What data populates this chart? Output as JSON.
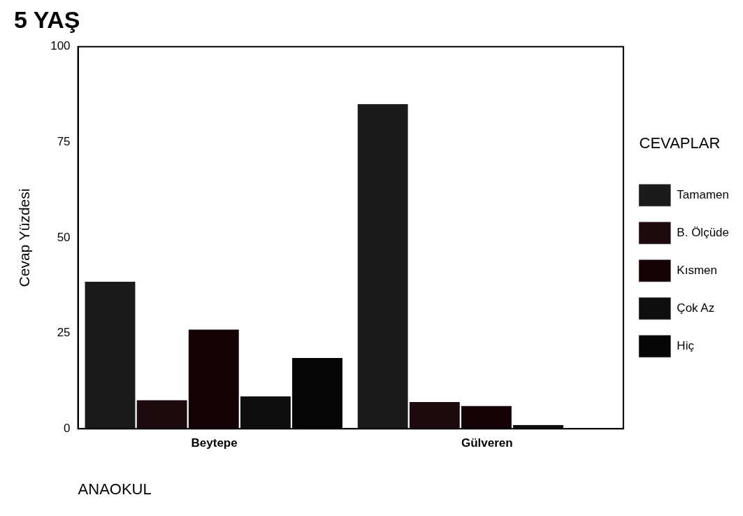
{
  "chart_data": {
    "type": "bar",
    "title": "5 YAŞ",
    "xlabel": "ANAOKUL",
    "ylabel": "Cevap Yüzdesi",
    "legend_title": "CEVAPLAR",
    "categories": [
      "Beytepe",
      "Gülveren"
    ],
    "series": [
      {
        "name": "Tamamen",
        "color": "#1a1a1a",
        "values": [
          38.5,
          85
        ]
      },
      {
        "name": "B. Ölçüde",
        "color": "#1c0a0e",
        "values": [
          7.5,
          7
        ]
      },
      {
        "name": "Kısmen",
        "color": "#140206",
        "values": [
          26,
          6
        ]
      },
      {
        "name": "Çok Az",
        "color": "#0e0e0e",
        "values": [
          8.5,
          1
        ]
      },
      {
        "name": "Hiç",
        "color": "#060606",
        "values": [
          18.5,
          0
        ]
      }
    ],
    "ylim": [
      0,
      100
    ],
    "yticks": [
      0,
      25,
      50,
      75,
      100
    ],
    "grid": false,
    "legend": "right"
  }
}
